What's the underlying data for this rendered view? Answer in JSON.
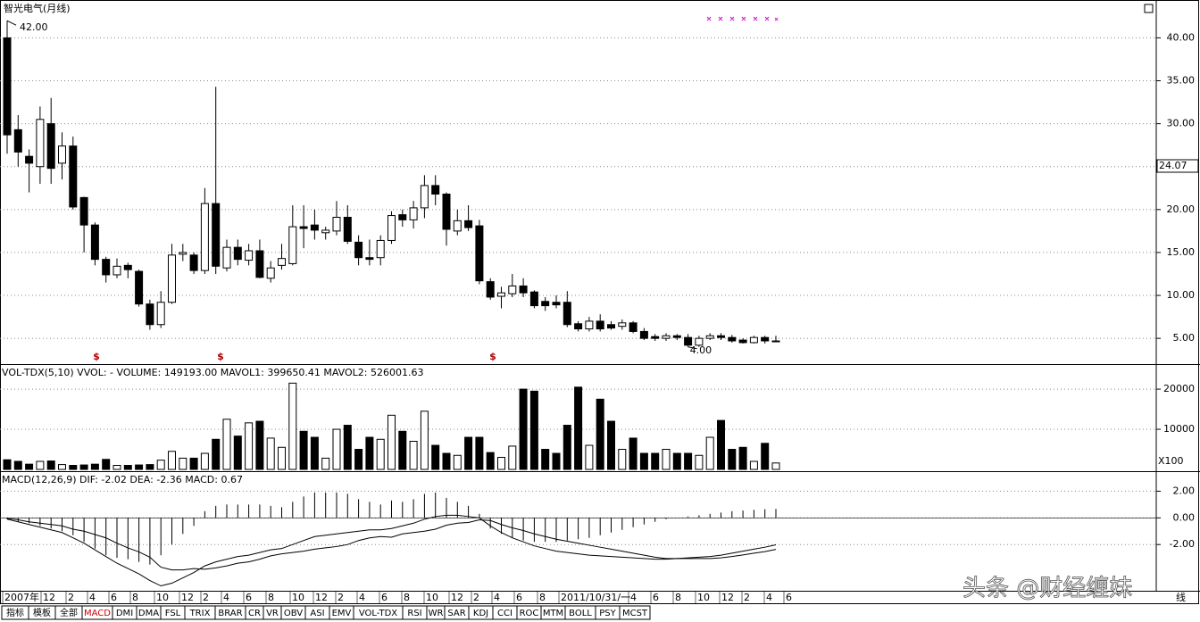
{
  "window": {
    "x_axis_labels": [
      "2007年",
      "12",
      "2",
      "4",
      "6",
      "8",
      "10",
      "12",
      "2",
      "4",
      "6",
      "8",
      "10",
      "12",
      "2",
      "4",
      "6",
      "8",
      "10",
      "12",
      "2",
      "4",
      "6",
      "8",
      "2011/10/31/一",
      "4",
      "6",
      "8",
      "10",
      "12",
      "2",
      "4",
      "6"
    ],
    "indicator_tabs": [
      "指标",
      "模板",
      "全部",
      "MACD",
      "DMI",
      "DMA",
      "FSL",
      "TRIX",
      "BRAR",
      "CR",
      "VR",
      "OBV",
      "ASI",
      "EMV",
      "VOL-TDX",
      "RSI",
      "WR",
      "SAR",
      "KDJ",
      "CCI",
      "ROC",
      "MTM",
      "BOLL",
      "PSY",
      "MCST"
    ],
    "watermark": "头条 @财经缠妹",
    "corner_text": "线"
  },
  "chart_data": [
    {
      "type": "candlestick",
      "title": "智光电气(月线)",
      "open": [
        40,
        29.3,
        26.2,
        25,
        30,
        25.4,
        27.4,
        21.4,
        18.2,
        14.2,
        12.4,
        13.5,
        12.8,
        9,
        6.6,
        9.2,
        14.8,
        14.7,
        12.9,
        20.7,
        13.2,
        15.6,
        14.1,
        15.2,
        12,
        13.5,
        13.7,
        18,
        18.2,
        17.3,
        17.5,
        19.1,
        16.2,
        14.4,
        14.4,
        16.4,
        19.4,
        18.8,
        20.2,
        22.8,
        21.8,
        17.5,
        18.7,
        18.1,
        11.6,
        9.9,
        10.2,
        11.1,
        10.4,
        9.3,
        9.2,
        9.2,
        6.7,
        6.1,
        7,
        6.6,
        6.4,
        6.8,
        5.8,
        5.2,
        5,
        5.3,
        5.1,
        4.2,
        5,
        5.3,
        5.1,
        4.8,
        4.5,
        5.1,
        4.7
      ],
      "high": [
        42,
        31,
        27,
        32,
        33,
        29,
        28.5,
        21.5,
        18.5,
        14.5,
        14.3,
        13.8,
        13,
        9.5,
        10.5,
        16,
        16,
        15,
        22.5,
        34.3,
        16.5,
        16.5,
        16,
        16.5,
        14,
        16,
        20.5,
        20.5,
        20,
        18,
        21,
        20.5,
        17,
        16.5,
        17,
        19.8,
        20,
        21,
        24,
        24,
        22,
        20,
        20.5,
        18.8,
        12,
        11,
        12.5,
        12,
        10.6,
        9.8,
        10,
        10.5,
        7,
        7.5,
        7.8,
        7,
        7.2,
        7,
        6.2,
        5.5,
        5.6,
        5.5,
        5.5,
        5.3,
        5.6,
        5.6,
        5.4,
        5,
        5.3,
        5.3,
        5.3
      ],
      "low": [
        26.5,
        25,
        22,
        23,
        23,
        23.5,
        20,
        15,
        13.5,
        11.5,
        12,
        12,
        8.7,
        6,
        6.2,
        9,
        14,
        12.5,
        12.5,
        12.5,
        12.8,
        13.5,
        13.5,
        12,
        11.5,
        13,
        13.5,
        15.5,
        16.5,
        16.5,
        17,
        16,
        13.5,
        13.5,
        13.5,
        16,
        18,
        17.8,
        19,
        20.5,
        15.8,
        17,
        17.5,
        11.3,
        9.5,
        8.5,
        9.8,
        9.8,
        8.5,
        8.2,
        8.5,
        6.3,
        5.8,
        5.8,
        5.8,
        6,
        6,
        5.6,
        4.8,
        4.7,
        4.7,
        4.8,
        4,
        4,
        4.8,
        4.8,
        4.5,
        4.4,
        4.4,
        4.4,
        4.6
      ],
      "close": [
        28.7,
        26.7,
        25.4,
        30.5,
        24.8,
        27.4,
        20.3,
        18.2,
        14.2,
        12.4,
        13.4,
        13,
        9,
        6.6,
        9.2,
        14.7,
        15,
        12.9,
        20.7,
        13.4,
        15.6,
        14.2,
        15.2,
        12.1,
        13.2,
        14.3,
        18,
        17.8,
        17.6,
        17.6,
        19.1,
        16.3,
        14.4,
        14.2,
        16.4,
        19.3,
        18.8,
        20.2,
        22.8,
        21.8,
        17.7,
        18.7,
        17.9,
        11.7,
        9.8,
        10.3,
        11.1,
        10.3,
        8.8,
        8.8,
        8.9,
        6.6,
        6.1,
        7,
        6.1,
        6.2,
        6.8,
        5.8,
        5,
        5,
        5.3,
        5.1,
        4.2,
        5,
        5.3,
        5.1,
        4.7,
        4.5,
        5.1,
        4.7,
        4.7
      ],
      "annotations": [
        "42.00",
        "4.00",
        "24.07",
        "$",
        "$",
        "$"
      ],
      "ylim": [
        2,
        44.2
      ],
      "yticks": [
        {
          "value": 5,
          "label": "5.00"
        },
        {
          "value": 10,
          "label": "10.00"
        },
        {
          "value": 15,
          "label": "15.00"
        },
        {
          "value": 20,
          "label": "20.00"
        },
        {
          "value": 25,
          "label": "25.00"
        },
        {
          "value": 30,
          "label": "30.00"
        },
        {
          "value": 35,
          "label": "35.00"
        },
        {
          "value": 40,
          "label": "40.00"
        }
      ],
      "grid": true
    },
    {
      "type": "volume",
      "title": "VOL-TDX(5,10) VVOL: -   VOLUME: 149193.00  MAVOL1: 399650.41  MAVOL2: 526001.63",
      "unit_label": "X100",
      "values": [
        2400,
        2000,
        1300,
        2000,
        2100,
        1200,
        1000,
        1100,
        1300,
        2500,
        1000,
        1000,
        1100,
        1200,
        2300,
        4500,
        2800,
        2800,
        4000,
        7500,
        12500,
        8300,
        11600,
        12000,
        7800,
        5500,
        21500,
        9500,
        8000,
        2800,
        10000,
        11000,
        5000,
        8000,
        7500,
        13500,
        9500,
        7000,
        14500,
        6000,
        4000,
        3500,
        8000,
        8000,
        4200,
        3000,
        5800,
        20000,
        19500,
        5000,
        4000,
        11000,
        20500,
        6000,
        17500,
        12000,
        5000,
        7800,
        4000,
        4000,
        5000,
        4000,
        4000,
        3500,
        8000,
        12200,
        5000,
        5500,
        2000,
        6500,
        1600
      ],
      "ylim": [
        0,
        25800
      ],
      "yticks": [
        10000,
        20000
      ],
      "grid": true
    },
    {
      "type": "macd",
      "title": "MACD(12,26,9)  DIF: -2.02  DEA: -2.36  MACD: 0.67",
      "series": [
        {
          "name": "MACD",
          "color": "#000000",
          "values": [
            -0.1,
            -0.3,
            -0.4,
            -0.6,
            -0.8,
            -1.0,
            -1.3,
            -1.8,
            -2.3,
            -2.8,
            -3.0,
            -3.1,
            -3.3,
            -3.5,
            -2.8,
            -2.0,
            -1.2,
            -0.6,
            0.5,
            0.9,
            1.0,
            1.0,
            1.0,
            1.0,
            0.9,
            0.8,
            1.2,
            1.6,
            1.9,
            1.9,
            1.9,
            1.8,
            1.4,
            1.2,
            1.0,
            1.3,
            1.2,
            1.4,
            1.8,
            1.9,
            1.5,
            1.2,
            0.9,
            0.3,
            -0.8,
            -1.2,
            -1.5,
            -1.7,
            -1.8,
            -1.8,
            -1.8,
            -1.7,
            -1.6,
            -1.5,
            -1.3,
            -1.1,
            -0.9,
            -0.7,
            -0.5,
            -0.3,
            -0.1,
            0,
            0.1,
            0.2,
            0.3,
            0.4,
            0.5,
            0.55,
            0.6,
            0.65,
            0.67
          ]
        },
        {
          "name": "DIF",
          "color": "#000000",
          "values": [
            -0.1,
            -0.3,
            -0.5,
            -0.7,
            -0.9,
            -1.1,
            -1.5,
            -1.9,
            -2.4,
            -2.9,
            -3.4,
            -3.8,
            -4.2,
            -4.7,
            -5.1,
            -4.9,
            -4.5,
            -4.1,
            -3.6,
            -3.3,
            -3.1,
            -2.9,
            -2.8,
            -2.6,
            -2.4,
            -2.3,
            -2.0,
            -1.7,
            -1.4,
            -1.3,
            -1.2,
            -1.1,
            -1.0,
            -0.9,
            -0.9,
            -0.8,
            -0.6,
            -0.4,
            -0.1,
            0.1,
            0.2,
            0.2,
            0.1,
            0,
            -0.6,
            -1.1,
            -1.5,
            -1.8,
            -2.1,
            -2.3,
            -2.5,
            -2.6,
            -2.7,
            -2.8,
            -2.85,
            -2.9,
            -2.95,
            -3.0,
            -3.05,
            -3.1,
            -3.1,
            -3.05,
            -3.0,
            -2.95,
            -2.9,
            -2.8,
            -2.65,
            -2.5,
            -2.35,
            -2.2,
            -2.02
          ]
        },
        {
          "name": "DEA",
          "color": "#000000",
          "values": [
            -0.05,
            -0.15,
            -0.3,
            -0.4,
            -0.5,
            -0.6,
            -0.85,
            -1.0,
            -1.25,
            -1.5,
            -1.9,
            -2.25,
            -2.55,
            -2.95,
            -3.7,
            -3.9,
            -3.9,
            -3.8,
            -3.85,
            -3.75,
            -3.6,
            -3.4,
            -3.3,
            -3.1,
            -2.85,
            -2.7,
            -2.6,
            -2.5,
            -2.35,
            -2.25,
            -2.15,
            -2.0,
            -1.7,
            -1.5,
            -1.4,
            -1.45,
            -1.2,
            -1.1,
            -1.0,
            -0.85,
            -0.55,
            -0.4,
            -0.35,
            -0.15,
            -0.2,
            -0.5,
            -0.75,
            -0.95,
            -1.2,
            -1.4,
            -1.6,
            -1.75,
            -1.9,
            -2.05,
            -2.2,
            -2.35,
            -2.5,
            -2.65,
            -2.8,
            -2.95,
            -3.05,
            -3.05,
            -3.05,
            -3.05,
            -3.05,
            -3.0,
            -2.9,
            -2.78,
            -2.65,
            -2.53,
            -2.36
          ]
        }
      ],
      "ylim": [
        -5.4,
        3.3
      ],
      "yticks": [
        {
          "value": -2,
          "label": "-2.00"
        },
        {
          "value": 0,
          "label": "0.00"
        },
        {
          "value": 2,
          "label": "2.00"
        }
      ],
      "grid": true
    }
  ]
}
